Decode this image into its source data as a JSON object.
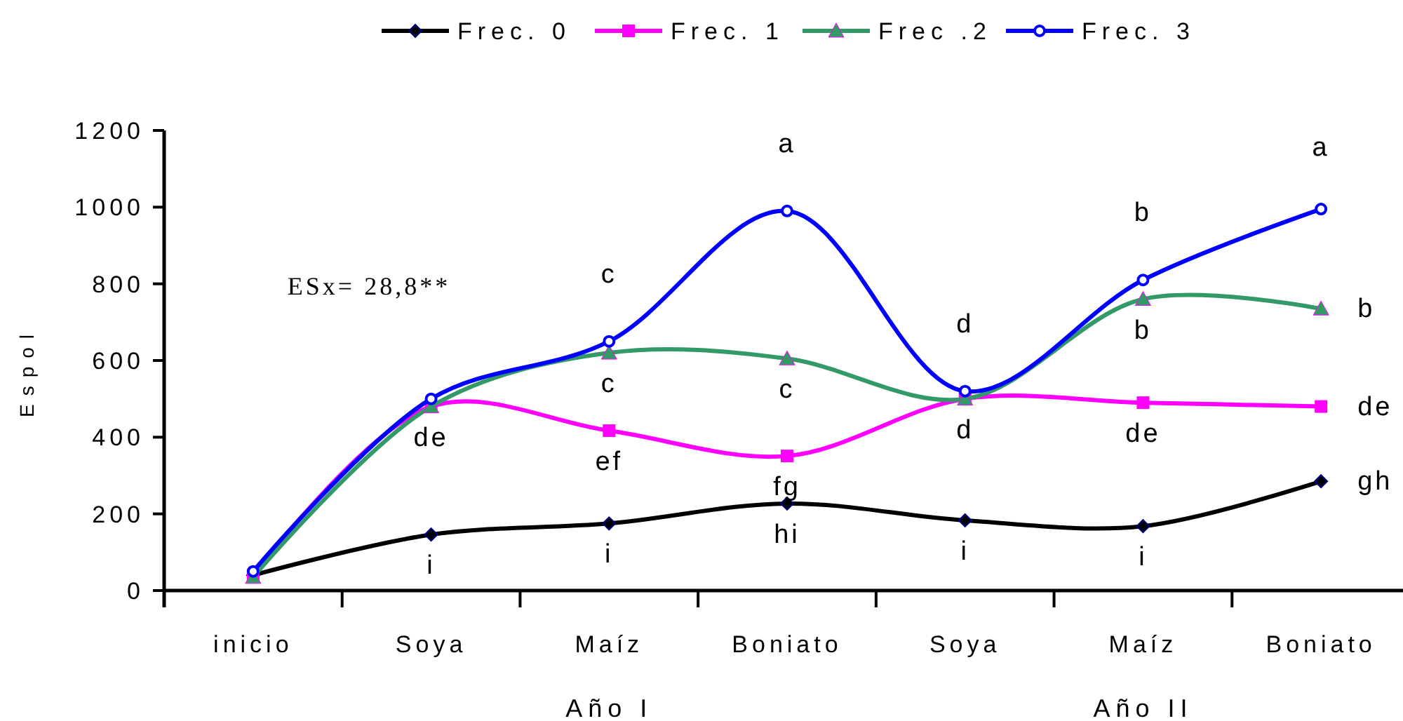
{
  "chart_data": {
    "type": "line",
    "ylabel": "Espol",
    "categories": [
      "inicio",
      "Soya",
      "Maíz",
      "Boniato",
      "Soya",
      "Maíz",
      "Boniato"
    ],
    "ylim": [
      0,
      1200
    ],
    "yticks": [
      0,
      200,
      400,
      600,
      800,
      1000,
      1200
    ],
    "grid": false,
    "legend": "top",
    "annotations": [
      "ESx= 28,8**",
      "Año I",
      "Año II"
    ],
    "series": [
      {
        "name": "Frec. 0",
        "color": "#000000",
        "marker": "diamond",
        "values": [
          40,
          146,
          175,
          227,
          183,
          168,
          285
        ],
        "value_labels": [
          null,
          "i",
          "i",
          "hi",
          "i",
          "i",
          "gh"
        ]
      },
      {
        "name": "Frec. 1",
        "color": "#ff00ff",
        "marker": "square",
        "values": [
          40,
          480,
          417,
          351,
          500,
          490,
          480
        ],
        "value_labels": [
          null,
          "de",
          "ef",
          "fg",
          "d",
          "de",
          "de"
        ]
      },
      {
        "name": "Frec .2",
        "color": "#339966",
        "marker": "triangle",
        "values": [
          35,
          480,
          620,
          605,
          500,
          760,
          735
        ],
        "value_labels": [
          null,
          null,
          "c",
          "c",
          null,
          "b",
          "b"
        ]
      },
      {
        "name": "Frec. 3",
        "color": "#0000ff",
        "marker": "circle",
        "values": [
          50,
          500,
          650,
          990,
          520,
          810,
          995
        ],
        "value_labels": [
          null,
          null,
          "c",
          "a",
          "d",
          "b",
          "a"
        ]
      }
    ]
  }
}
